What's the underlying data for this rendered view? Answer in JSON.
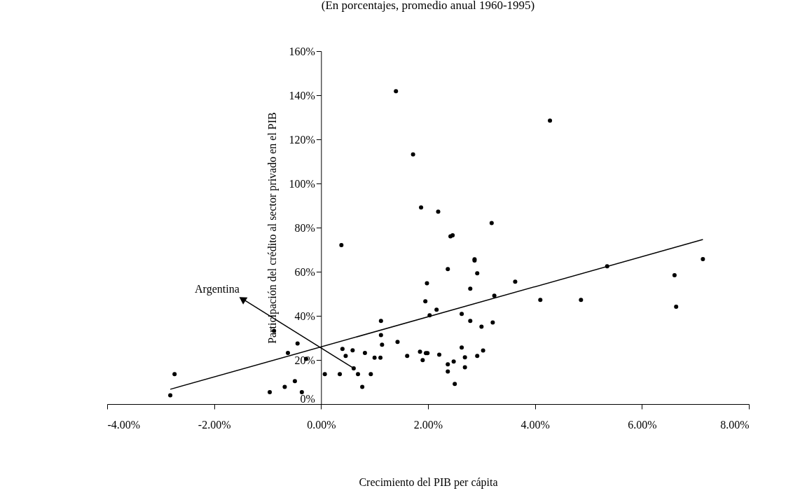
{
  "chart_data": {
    "type": "scatter",
    "title": "(En porcentajes, promedio anual 1960-1995)",
    "xlabel": "Crecimiento del PIB per cápita",
    "ylabel": "Participación del crédito al sector privado en el PIB",
    "xlim": [
      -4,
      8
    ],
    "xticks": [
      {
        "value": -4,
        "label": "-4.00%"
      },
      {
        "value": -2,
        "label": "-2.00%"
      },
      {
        "value": 0,
        "label": "0.00%"
      },
      {
        "value": 2,
        "label": "2.00%"
      },
      {
        "value": 4,
        "label": "4.00%"
      },
      {
        "value": 6,
        "label": "6.00%"
      },
      {
        "value": 8,
        "label": "8.00%"
      }
    ],
    "ylim": [
      0,
      160
    ],
    "yticks": [
      {
        "value": 0,
        "label": "0%"
      },
      {
        "value": 20,
        "label": "20%"
      },
      {
        "value": 40,
        "label": "40%"
      },
      {
        "value": 60,
        "label": "60%"
      },
      {
        "value": 80,
        "label": "80%"
      },
      {
        "value": 100,
        "label": "100%"
      },
      {
        "value": 120,
        "label": "120%"
      },
      {
        "value": 140,
        "label": "140%"
      },
      {
        "value": 160,
        "label": "160%"
      }
    ],
    "grid": false,
    "marker": "circle",
    "series": [
      {
        "type": "scatter",
        "color": "#000000",
        "x": [
          -2.82,
          -2.74,
          -0.88,
          -0.96,
          -0.68,
          -0.49,
          -0.36,
          -0.62,
          -0.44,
          -0.28,
          0.38,
          0.07,
          0.35,
          0.4,
          0.46,
          0.59,
          0.61,
          0.69,
          0.77,
          0.82,
          0.93,
          1.0,
          1.11,
          1.12,
          1.12,
          1.14,
          1.4,
          1.72,
          4.28,
          1.87,
          2.19,
          3.19,
          2.42,
          2.46,
          2.87,
          2.87,
          2.37,
          2.92,
          1.98,
          3.63,
          2.79,
          3.24,
          4.1,
          4.86,
          1.95,
          2.16,
          2.03,
          2.63,
          2.79,
          3.21,
          3.0,
          1.43,
          1.85,
          1.96,
          1.99,
          1.9,
          1.61,
          2.21,
          2.63,
          2.69,
          2.92,
          3.03,
          2.37,
          2.48,
          2.37,
          2.69,
          2.5,
          5.35,
          7.14,
          6.61,
          6.64
        ],
        "values": [
          4.0,
          13.6,
          33.2,
          5.4,
          7.8,
          10.4,
          5.4,
          23.2,
          27.5,
          20.5,
          72.1,
          13.6,
          13.6,
          25.0,
          21.8,
          24.4,
          16.2,
          13.6,
          7.8,
          23.2,
          13.6,
          21.0,
          21.0,
          37.7,
          31.3,
          26.9,
          141.8,
          113.2,
          128.5,
          89.1,
          87.2,
          82.1,
          76.0,
          76.5,
          65.6,
          65.1,
          61.2,
          59.3,
          54.8,
          55.5,
          52.3,
          49.1,
          47.2,
          47.2,
          46.6,
          42.8,
          40.2,
          40.9,
          37.7,
          37.0,
          35.1,
          28.2,
          23.7,
          23.1,
          23.1,
          19.9,
          21.8,
          22.4,
          25.6,
          21.2,
          21.8,
          24.3,
          18.0,
          19.3,
          14.8,
          16.7,
          9.1,
          62.5,
          65.7,
          58.4,
          44.1
        ]
      },
      {
        "type": "line",
        "color": "#000000",
        "marker": "none",
        "line_style": "solid",
        "x": [
          -2.82,
          7.14
        ],
        "values": [
          6.7,
          74.6
        ]
      }
    ],
    "annotations": [
      {
        "text": "Argentina",
        "x": 0.61,
        "y": 16.2
      }
    ]
  }
}
